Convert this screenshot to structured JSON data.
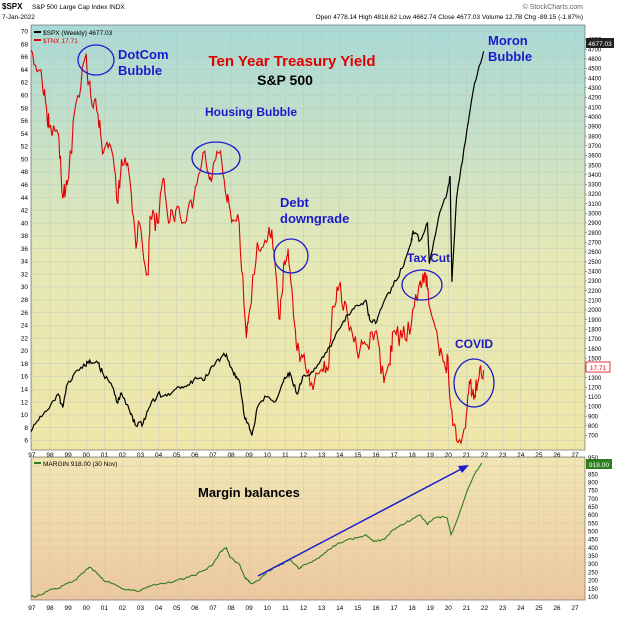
{
  "header": {
    "symbol": "$SPX",
    "description": "S&P 500 Large Cap Index INDX",
    "date": "7-Jan-2022",
    "ohlc": "Open 4778.14  High 4818.62  Low 4662.74  Close 4677.03  Volume 12.7B  Chg -89.15 (-1.87%)",
    "brand": "© StockCharts.com"
  },
  "legend": {
    "spx": "$SPX (Weekly) 4677.03",
    "tnx": "$TNX 17.71",
    "margin": "MARGIN 918.00 (30 Nov)"
  },
  "badges": {
    "spx_last": "4677.03",
    "tnx_last": "17.71",
    "margin_last": "918.00"
  },
  "titles": {
    "line1": "Ten Year Treasury Yield",
    "line2": "S&P 500"
  },
  "annotations": {
    "dotcom": [
      "DotCom",
      "Bubble"
    ],
    "housing": "Housing Bubble",
    "debt": [
      "Debt",
      "downgrade"
    ],
    "taxcut": "Tax Cut",
    "moron": [
      "Moron",
      "Bubble"
    ],
    "covid": "COVID",
    "margin": "Margin balances"
  },
  "colors": {
    "spx": "#000000",
    "tnx": "#e00000",
    "margin": "#2e7d1e",
    "annotation": "#1a1acc",
    "title": "#e00000"
  },
  "chart_data": [
    {
      "type": "line",
      "x_axis": {
        "labels": [
          "97",
          "98",
          "99",
          "00",
          "01",
          "02",
          "03",
          "04",
          "05",
          "06",
          "07",
          "08",
          "09",
          "10",
          "11",
          "12",
          "13",
          "14",
          "15",
          "16",
          "17",
          "18",
          "19",
          "20",
          "21",
          "22",
          "23",
          "24",
          "25",
          "26",
          "27"
        ],
        "range": [
          1997.0,
          2027.6
        ]
      },
      "left_axis": {
        "range": [
          4.5,
          71
        ],
        "ticks": [
          6,
          8,
          10,
          12,
          14,
          16,
          18,
          20,
          22,
          24,
          26,
          28,
          30,
          32,
          34,
          36,
          38,
          40,
          42,
          44,
          46,
          48,
          50,
          52,
          54,
          56,
          58,
          60,
          62,
          64,
          66,
          68,
          70
        ]
      },
      "right_axis": {
        "range": [
          550,
          4950
        ],
        "ticks": [
          700,
          800,
          900,
          1000,
          1100,
          1200,
          1300,
          1400,
          1500,
          1600,
          1700,
          1800,
          1900,
          2000,
          2100,
          2200,
          2300,
          2400,
          2500,
          2600,
          2700,
          2800,
          2900,
          3000,
          3100,
          3200,
          3300,
          3400,
          3500,
          3600,
          3700,
          3800,
          3900,
          4000,
          4100,
          4200,
          4300,
          4400,
          4500,
          4600,
          4700,
          4800
        ]
      },
      "series": [
        {
          "name": "$SPX (Weekly)",
          "axis": "right",
          "x": [
            1997.0,
            1997.5,
            1998.0,
            1998.5,
            1998.75,
            1999.0,
            1999.5,
            2000.0,
            2000.25,
            2000.7,
            2001.0,
            2001.5,
            2001.75,
            2002.0,
            2002.5,
            2002.8,
            2003.2,
            2003.5,
            2004.0,
            2004.5,
            2005.0,
            2005.5,
            2006.0,
            2006.5,
            2007.0,
            2007.5,
            2007.8,
            2008.2,
            2008.5,
            2008.8,
            2009.0,
            2009.2,
            2009.5,
            2010.0,
            2010.5,
            2011.0,
            2011.3,
            2011.7,
            2012.0,
            2012.5,
            2013.0,
            2013.5,
            2014.0,
            2014.5,
            2015.0,
            2015.5,
            2015.7,
            2016.1,
            2016.5,
            2017.0,
            2017.5,
            2018.0,
            2018.1,
            2018.5,
            2018.9,
            2019.0,
            2019.5,
            2020.0,
            2020.15,
            2020.25,
            2020.5,
            2021.0,
            2021.5,
            2022.0
          ],
          "values": [
            740,
            900,
            980,
            1130,
            990,
            1230,
            1370,
            1420,
            1480,
            1450,
            1330,
            1200,
            1040,
            1140,
            920,
            800,
            830,
            980,
            1130,
            1110,
            1180,
            1210,
            1280,
            1270,
            1420,
            1510,
            1540,
            1330,
            1270,
            880,
            820,
            700,
            990,
            1100,
            1050,
            1300,
            1350,
            1130,
            1310,
            1360,
            1480,
            1620,
            1800,
            1950,
            2050,
            2100,
            1900,
            1880,
            2090,
            2250,
            2430,
            2700,
            2820,
            2720,
            2900,
            2480,
            2950,
            3230,
            3380,
            2290,
            3150,
            3750,
            4350,
            4677
          ]
        },
        {
          "name": "$TNX",
          "axis": "left",
          "x": [
            1997.0,
            1997.5,
            1997.8,
            1998.0,
            1998.5,
            1998.75,
            1999.0,
            1999.5,
            2000.0,
            2000.3,
            2000.7,
            2001.0,
            2001.4,
            2001.8,
            2002.0,
            2002.4,
            2002.8,
            2003.0,
            2003.45,
            2003.6,
            2004.0,
            2004.3,
            2004.6,
            2005.0,
            2005.5,
            2006.0,
            2006.5,
            2006.8,
            2007.0,
            2007.4,
            2007.8,
            2008.0,
            2008.5,
            2008.9,
            2009.0,
            2009.5,
            2010.0,
            2010.3,
            2010.7,
            2011.0,
            2011.2,
            2011.4,
            2011.7,
            2012.0,
            2012.5,
            2013.0,
            2013.4,
            2013.7,
            2014.0,
            2014.5,
            2015.0,
            2015.5,
            2016.0,
            2016.5,
            2016.8,
            2017.0,
            2017.5,
            2018.0,
            2018.5,
            2018.8,
            2019.0,
            2019.5,
            2019.9,
            2020.0,
            2020.2,
            2020.5,
            2021.0,
            2021.25,
            2021.5,
            2021.75,
            2022.0
          ],
          "values": [
            67,
            64,
            59,
            55,
            54,
            44,
            46,
            59,
            66,
            60,
            57,
            51,
            52,
            43,
            50,
            48,
            36,
            40,
            32,
            41,
            40,
            47,
            40,
            42,
            40,
            44,
            51,
            48,
            47,
            51,
            44,
            42,
            40,
            22,
            25,
            37,
            37,
            39,
            25,
            34,
            36,
            30,
            20,
            19,
            15,
            17,
            17,
            27,
            30,
            25,
            20,
            21,
            23,
            15,
            18,
            23,
            22,
            24,
            31,
            32,
            27,
            21,
            17,
            19,
            11,
            6,
            8,
            15,
            13,
            16,
            17
          ]
        }
      ]
    },
    {
      "type": "line",
      "x_axis": {
        "labels": [
          "97",
          "98",
          "99",
          "00",
          "01",
          "02",
          "03",
          "04",
          "05",
          "06",
          "07",
          "08",
          "09",
          "10",
          "11",
          "12",
          "13",
          "14",
          "15",
          "16",
          "17",
          "18",
          "19",
          "20",
          "21",
          "22",
          "23",
          "24",
          "25",
          "26",
          "27"
        ],
        "range": [
          1997.0,
          2027.6
        ]
      },
      "right_axis": {
        "range": [
          80,
          955
        ],
        "ticks": [
          100,
          150,
          200,
          250,
          300,
          350,
          400,
          450,
          500,
          550,
          600,
          650,
          700,
          750,
          800,
          850,
          900,
          950
        ]
      },
      "series": [
        {
          "name": "MARGIN",
          "axis": "right",
          "x": [
            1997.0,
            1997.5,
            1998.0,
            1998.5,
            1999.0,
            1999.5,
            2000.0,
            2000.2,
            2000.6,
            2001.0,
            2001.5,
            2002.0,
            2002.5,
            2003.0,
            2003.5,
            2004.0,
            2004.5,
            2005.0,
            2005.5,
            2006.0,
            2006.5,
            2007.0,
            2007.5,
            2007.8,
            2008.0,
            2008.5,
            2008.8,
            2009.0,
            2009.2,
            2009.6,
            2010.0,
            2010.5,
            2011.0,
            2011.3,
            2011.8,
            2012.0,
            2012.5,
            2013.0,
            2013.5,
            2014.0,
            2014.5,
            2015.0,
            2015.5,
            2015.8,
            2016.0,
            2016.5,
            2017.0,
            2017.5,
            2018.0,
            2018.5,
            2018.9,
            2019.0,
            2019.5,
            2020.0,
            2020.2,
            2020.5,
            2021.0,
            2021.5,
            2021.9
          ],
          "values": [
            100,
            110,
            140,
            150,
            180,
            205,
            260,
            280,
            250,
            200,
            180,
            150,
            140,
            135,
            165,
            175,
            185,
            200,
            210,
            230,
            260,
            290,
            380,
            400,
            340,
            300,
            220,
            200,
            180,
            200,
            250,
            280,
            310,
            330,
            270,
            290,
            310,
            350,
            390,
            430,
            450,
            460,
            480,
            450,
            440,
            450,
            510,
            540,
            570,
            600,
            540,
            560,
            590,
            580,
            480,
            560,
            720,
            850,
            918
          ]
        }
      ]
    }
  ]
}
